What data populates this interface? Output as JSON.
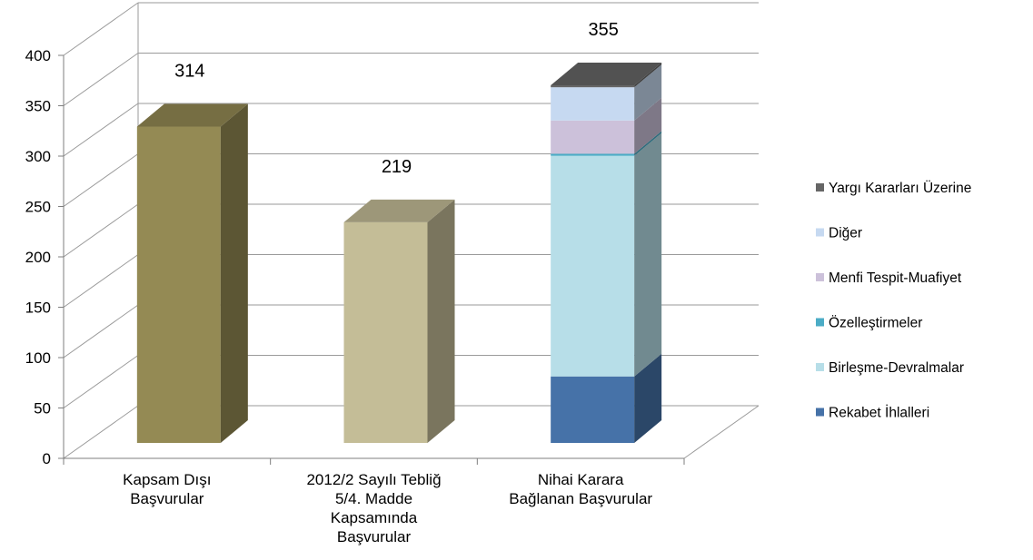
{
  "chart_data": {
    "type": "bar",
    "stacked": true,
    "three_d": true,
    "title": "",
    "xlabel": "",
    "ylabel": "",
    "ylim": [
      0,
      400
    ],
    "ytick_step": 50,
    "grid": true,
    "legend_position": "right",
    "categories": [
      [
        "Kapsam Dışı",
        "Başvurular"
      ],
      [
        "2012/2 Sayılı Tebliğ",
        "5/4. Madde",
        "Kapsamında",
        "Başvurular"
      ],
      [
        "Nihai Karara",
        "Bağlanan Başvurular"
      ]
    ],
    "totals": [
      314,
      219,
      355
    ],
    "bars": [
      {
        "segments": [
          {
            "value": 314,
            "color": "#948a54"
          }
        ]
      },
      {
        "segments": [
          {
            "value": 219,
            "color": "#c4bd97"
          }
        ]
      },
      {
        "segments": [
          {
            "series": "Rekabet İhlalleri",
            "value": 66
          },
          {
            "series": "Birleşme-Devralmalar",
            "value": 219
          },
          {
            "series": "Özelleştirmeler",
            "value": 2
          },
          {
            "series": "Menfi Tespit-Muafiyet",
            "value": 33
          },
          {
            "series": "Diğer",
            "value": 33
          },
          {
            "series": "Yargı Kararları Üzerine",
            "value": 2
          }
        ]
      }
    ],
    "legend": [
      {
        "name": "Yargı Kararları Üzerine",
        "color": "#666666"
      },
      {
        "name": "Diğer",
        "color": "#c6d9f1"
      },
      {
        "name": "Menfi Tespit-Muafiyet",
        "color": "#ccc1da"
      },
      {
        "name": "Özelleştirmeler",
        "color": "#4bacc6"
      },
      {
        "name": "Birleşme-Devralmalar",
        "color": "#b7dee8"
      },
      {
        "name": "Rekabet İhlalleri",
        "color": "#4672a8"
      }
    ]
  }
}
